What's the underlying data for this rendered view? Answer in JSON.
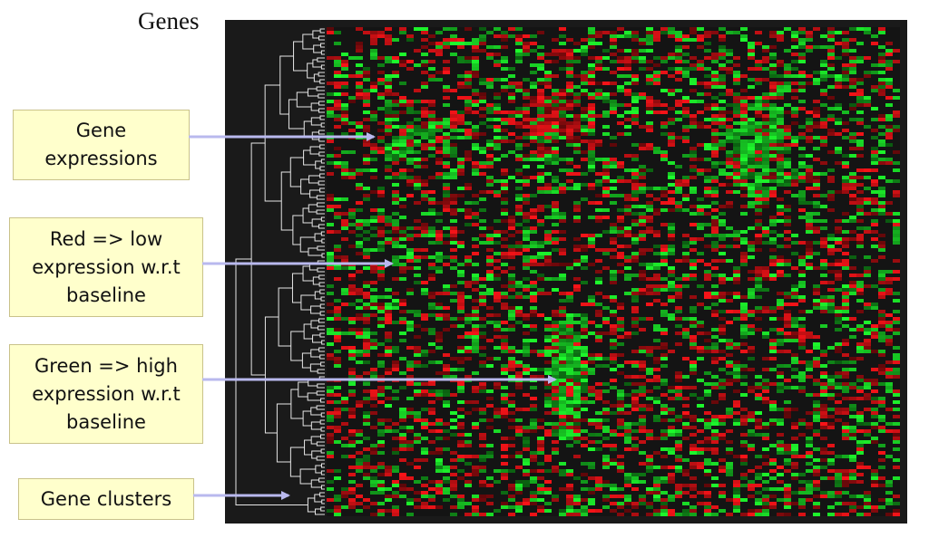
{
  "title": "Genes",
  "callouts": [
    {
      "lines": [
        "Gene",
        "expressions"
      ]
    },
    {
      "lines": [
        "Red => low",
        "expression w.r.t",
        "baseline"
      ]
    },
    {
      "lines": [
        "Green => high",
        "expression w.r.t",
        "baseline"
      ]
    },
    {
      "lines": [
        "Gene clusters"
      ]
    }
  ],
  "colors": {
    "red": "#e0141e",
    "green": "#1ee030",
    "dark": "#1a1a1a",
    "callout_bg": "#ffffcc",
    "arrow": "#b9b9ee",
    "dendrogram": "#e6e6e6"
  },
  "icon": "heatmap-dendrogram"
}
